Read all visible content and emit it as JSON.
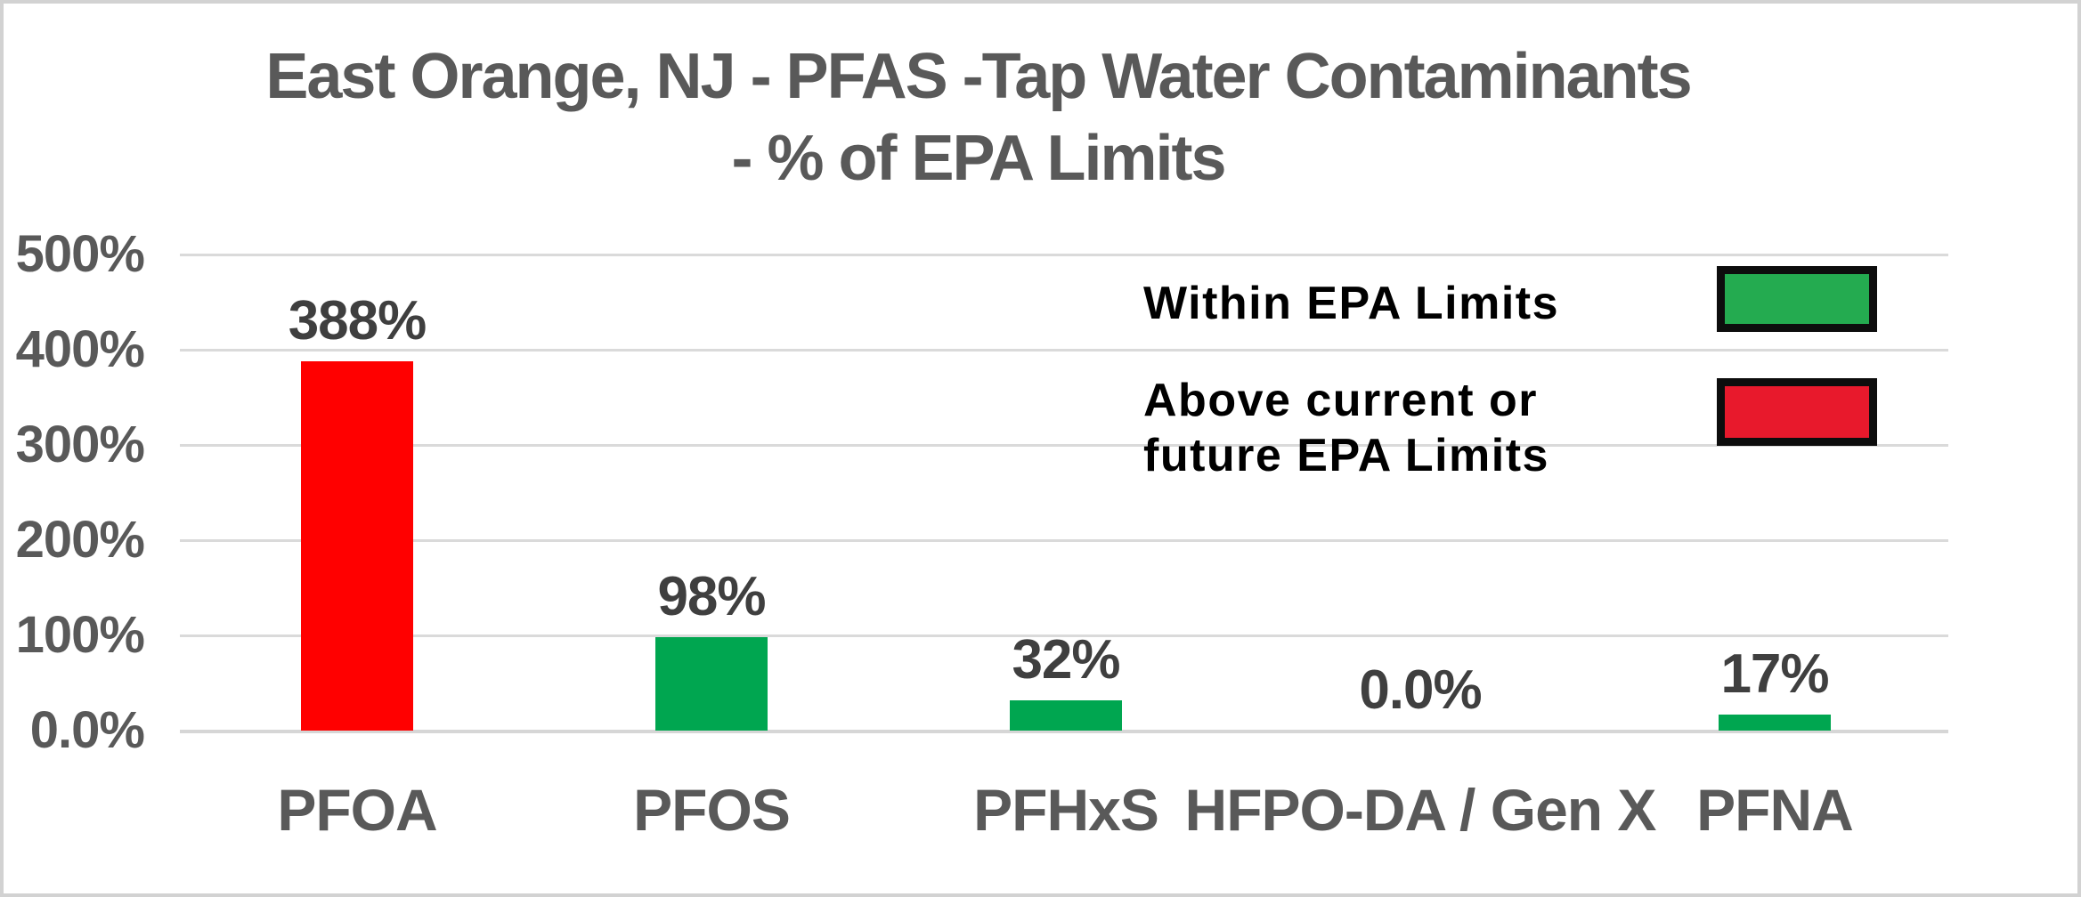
{
  "frame": {
    "border_color": "#d2d2d2",
    "background_color": "#ffffff"
  },
  "chart_data": {
    "type": "bar",
    "title_lines": [
      "East Orange, NJ - PFAS -Tap Water Contaminants",
      "- % of EPA Limits"
    ],
    "title_color": "#595959",
    "categories": [
      "PFOA",
      "PFOS",
      "PFHxS",
      "HFPO-DA / Gen X",
      "PFNA"
    ],
    "values": [
      388,
      98,
      32,
      0,
      17
    ],
    "value_labels": [
      "388%",
      "98%",
      "32%",
      "0.0%",
      "17%"
    ],
    "bar_statuses": [
      "above-limit",
      "within-limit",
      "within-limit",
      "within-limit",
      "within-limit"
    ],
    "bar_colors": [
      "#ff0000",
      "#00a650",
      "#00a650",
      "#00a650",
      "#00a650"
    ],
    "xlabel": "",
    "ylabel": "",
    "ylim": [
      0,
      500
    ],
    "y_ticks": [
      {
        "value": 500,
        "label": "500%"
      },
      {
        "value": 400,
        "label": "400%"
      },
      {
        "value": 300,
        "label": "300%"
      },
      {
        "value": 200,
        "label": "200%"
      },
      {
        "value": 100,
        "label": "100%"
      },
      {
        "value": 0,
        "label": "0.0%"
      }
    ],
    "grid": true,
    "gridline_color": "#dadada",
    "axis_label_color": "#595959",
    "data_label_color": "#3f3f3f",
    "legend": {
      "position": "inside-top-right",
      "text_color": "#000000",
      "swatch_border_color": "#0d0d0d",
      "items": [
        {
          "lines": [
            "Within EPA Limits"
          ],
          "swatch_color": "#24ab50",
          "status": "within-limit"
        },
        {
          "lines": [
            "Above current or",
            "future EPA Limits"
          ],
          "swatch_color": "#e8192c",
          "status": "above-limit"
        }
      ]
    }
  }
}
